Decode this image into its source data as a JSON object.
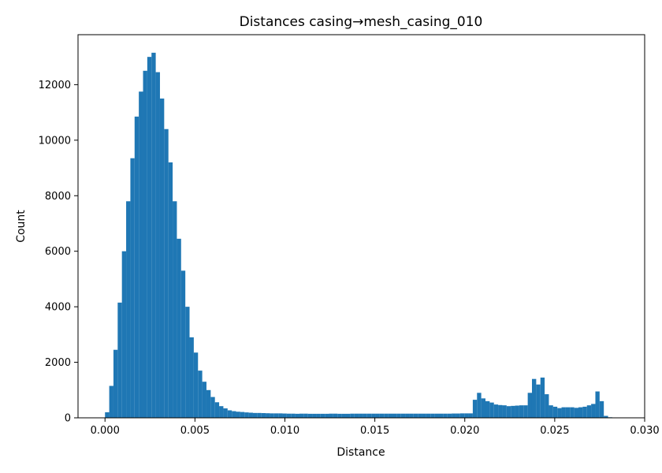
{
  "chart_data": {
    "type": "bar",
    "title": "Distances casing→mesh_casing_010",
    "xlabel": "Distance",
    "ylabel": "Count",
    "xlim": [
      -0.0015,
      0.03
    ],
    "ylim": [
      0,
      13800
    ],
    "grid": false,
    "legend": "none",
    "bar_color": "#1f77b4",
    "bin_start": 0.0,
    "bin_width": 0.000235,
    "xticks": [
      {
        "value": 0.0,
        "label": "0.000"
      },
      {
        "value": 0.005,
        "label": "0.005"
      },
      {
        "value": 0.01,
        "label": "0.010"
      },
      {
        "value": 0.015,
        "label": "0.015"
      },
      {
        "value": 0.02,
        "label": "0.020"
      },
      {
        "value": 0.025,
        "label": "0.025"
      },
      {
        "value": 0.03,
        "label": "0.030"
      }
    ],
    "yticks": [
      {
        "value": 0,
        "label": "0"
      },
      {
        "value": 2000,
        "label": "2000"
      },
      {
        "value": 4000,
        "label": "4000"
      },
      {
        "value": 6000,
        "label": "6000"
      },
      {
        "value": 8000,
        "label": "8000"
      },
      {
        "value": 10000,
        "label": "10000"
      },
      {
        "value": 12000,
        "label": "12000"
      }
    ],
    "values": [
      200,
      1150,
      2450,
      4150,
      6000,
      7800,
      9350,
      10850,
      11750,
      12500,
      13000,
      13150,
      12450,
      11500,
      10400,
      9200,
      7800,
      6450,
      5300,
      4000,
      2900,
      2350,
      1700,
      1300,
      1000,
      750,
      560,
      420,
      340,
      270,
      240,
      220,
      210,
      195,
      185,
      175,
      175,
      170,
      165,
      160,
      160,
      160,
      155,
      150,
      150,
      145,
      150,
      150,
      145,
      145,
      145,
      145,
      145,
      150,
      150,
      145,
      145,
      145,
      150,
      150,
      150,
      150,
      150,
      150,
      150,
      150,
      150,
      150,
      150,
      150,
      150,
      150,
      150,
      150,
      150,
      150,
      150,
      150,
      150,
      150,
      150,
      150,
      155,
      155,
      160,
      160,
      160,
      650,
      900,
      700,
      600,
      550,
      480,
      460,
      450,
      420,
      430,
      440,
      450,
      450,
      900,
      1400,
      1200,
      1450,
      850,
      450,
      400,
      350,
      380,
      380,
      380,
      360,
      380,
      400,
      450,
      500,
      950,
      600,
      70,
      20
    ]
  }
}
